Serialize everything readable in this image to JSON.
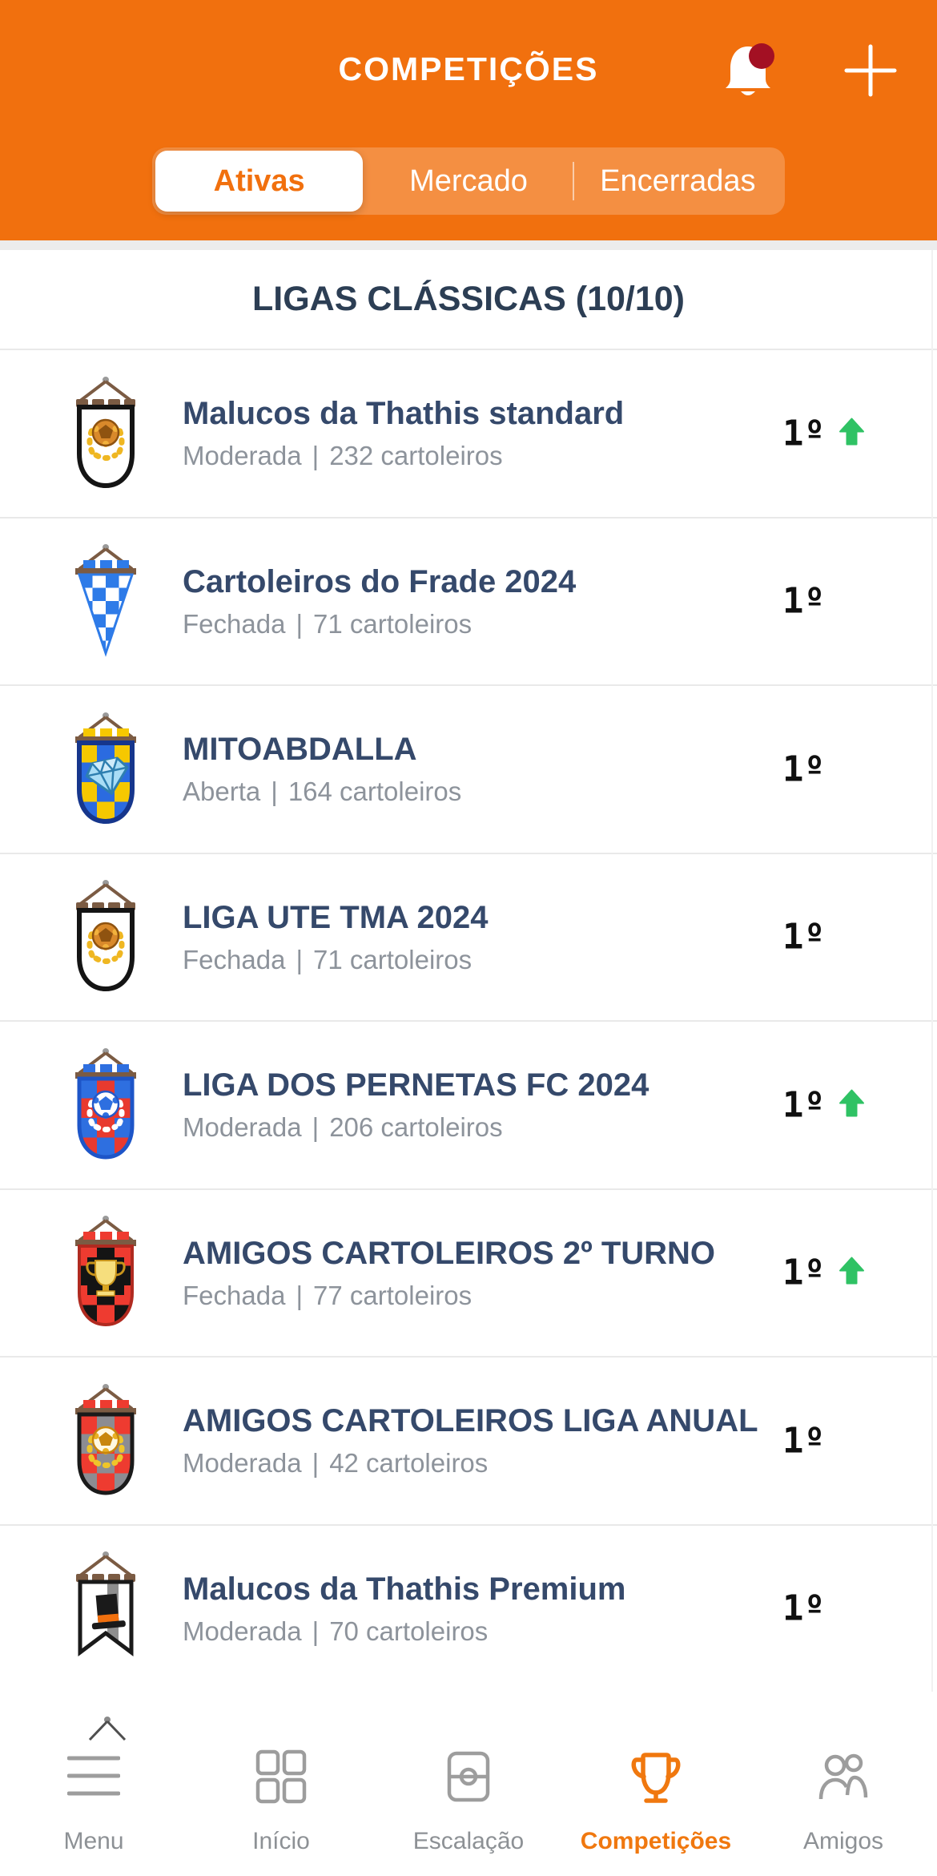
{
  "colors": {
    "accent_orange": "#F1700E",
    "nav_active_orange": "#F0780F",
    "heading_navy": "#2C3E54",
    "title_navy": "#35496B",
    "muted_gray": "#8D939B",
    "green_up_arrow": "#2FC264",
    "notification_badge_red": "#A31023",
    "divider_gray": "#E9E9E9"
  },
  "header": {
    "title": "COMPETIÇÕES",
    "bell_icon": "bell-icon-with-red-badge",
    "add_icon": "plus-icon",
    "tabs": [
      {
        "label": "Ativas",
        "active": true
      },
      {
        "label": "Mercado",
        "active": false
      },
      {
        "label": "Encerradas",
        "active": false
      }
    ]
  },
  "section": {
    "title": "LIGAS CLÁSSICAS (10/10)"
  },
  "strings": {
    "meta_separator": "|"
  },
  "leagues": [
    {
      "name": "Malucos da Thathis standard",
      "status": "Moderada",
      "members": "232 cartoleiros",
      "rank": "1º",
      "trend": "up",
      "badge": "white-gold-ball"
    },
    {
      "name": "Cartoleiros do Frade 2024",
      "status": "Fechada",
      "members": "71 cartoleiros",
      "rank": "1º",
      "trend": "none",
      "badge": "blue-white-triangle"
    },
    {
      "name": "MITOABDALLA",
      "status": "Aberta",
      "members": "164 cartoleiros",
      "rank": "1º",
      "trend": "none",
      "badge": "yellow-blue-diamond"
    },
    {
      "name": "LIGA UTE TMA 2024",
      "status": "Fechada",
      "members": "71 cartoleiros",
      "rank": "1º",
      "trend": "none",
      "badge": "white-gold-ball"
    },
    {
      "name": "LIGA DOS PERNETAS FC 2024",
      "status": "Moderada",
      "members": "206 cartoleiros",
      "rank": "1º",
      "trend": "up",
      "badge": "blue-red-ball"
    },
    {
      "name": "AMIGOS CARTOLEIROS 2º TURNO",
      "status": "Fechada",
      "members": "77 cartoleiros",
      "rank": "1º",
      "trend": "up",
      "badge": "red-black-trophy"
    },
    {
      "name": "AMIGOS CARTOLEIROS LIGA ANUAL",
      "status": "Moderada",
      "members": "42 cartoleiros",
      "rank": "1º",
      "trend": "none",
      "badge": "red-gray-ball"
    },
    {
      "name": "Malucos da Thathis Premium",
      "status": "Moderada",
      "members": "70 cartoleiros",
      "rank": "1º",
      "trend": "none",
      "badge": "white-tophat-swallow"
    }
  ],
  "bottom_nav": {
    "items": [
      {
        "label": "Menu",
        "icon": "menu-icon",
        "active": false
      },
      {
        "label": "Início",
        "icon": "home-grid-icon",
        "active": false
      },
      {
        "label": "Escalação",
        "icon": "lineup-field-icon",
        "active": false
      },
      {
        "label": "Competições",
        "icon": "trophy-icon",
        "active": true
      },
      {
        "label": "Amigos",
        "icon": "friends-icon",
        "active": false
      }
    ]
  }
}
